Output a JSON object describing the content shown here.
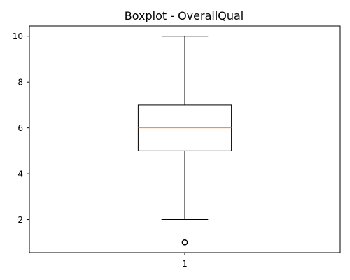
{
  "chart_data": {
    "type": "box",
    "title": "Boxplot - OverallQual",
    "xlabel": "",
    "ylabel": "",
    "categories": [
      "1"
    ],
    "boxes": [
      {
        "category": "1",
        "whisker_low": 2,
        "q1": 5,
        "median": 6,
        "q3": 7,
        "whisker_high": 10,
        "outliers": [
          1
        ]
      }
    ],
    "y_ticks": [
      2,
      4,
      6,
      8,
      10
    ],
    "ylim": [
      0.55,
      10.45
    ],
    "grid": false,
    "colors": {
      "box": "#000000",
      "median": "#ff7f0e",
      "axes": "#000000",
      "background": "#ffffff"
    }
  }
}
